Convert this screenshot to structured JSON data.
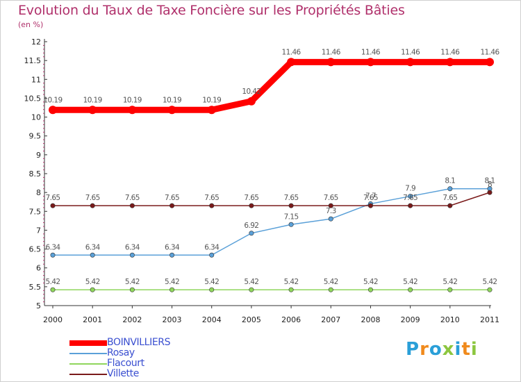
{
  "title": "Evolution du Taux de Taxe Foncière sur les Propriétés Bâties",
  "unit": "(en %)",
  "brand": {
    "letters": [
      "P",
      "r",
      "o",
      "x",
      "i",
      "t",
      "i"
    ],
    "colors": [
      "#2a9fd8",
      "#f08a1c",
      "#2a9fd8",
      "#8cc63f",
      "#2a9fd8",
      "#f08a1c",
      "#8cc63f"
    ]
  },
  "chart_data": {
    "type": "line",
    "x": [
      "2000",
      "2001",
      "2002",
      "2003",
      "2004",
      "2005",
      "2006",
      "2007",
      "2008",
      "2009",
      "2010",
      "2011"
    ],
    "yticks": [
      "5",
      "5.5",
      "6",
      "6.5",
      "7",
      "7.5",
      "8",
      "8.5",
      "9",
      "9.5",
      "10",
      "10.5",
      "11",
      "11.5",
      "12"
    ],
    "ylim": [
      5,
      12
    ],
    "grid": false,
    "legend_position": "bottom-left",
    "series": [
      {
        "name": "BOINVILLIERS",
        "color": "#ff0000",
        "values": [
          10.19,
          10.19,
          10.19,
          10.19,
          10.19,
          10.42,
          11.46,
          11.46,
          11.46,
          11.46,
          11.46,
          11.46
        ],
        "labels": [
          "10.19",
          "10.19",
          "10.19",
          "10.19",
          "10.19",
          "10.42",
          "11.46",
          "11.46",
          "11.46",
          "11.46",
          "11.46",
          "11.46"
        ]
      },
      {
        "name": "Rosay",
        "color": "#5aa0d8",
        "values": [
          6.34,
          6.34,
          6.34,
          6.34,
          6.34,
          6.92,
          7.15,
          7.3,
          7.7,
          7.9,
          8.1,
          8.1
        ],
        "labels": [
          "6.34",
          "6.34",
          "6.34",
          "6.34",
          "6.34",
          "6.92",
          "7.15",
          "7.3",
          "7.7",
          "7.9",
          "8.1",
          "8.1"
        ]
      },
      {
        "name": "Flacourt",
        "color": "#8fd65c",
        "values": [
          5.42,
          5.42,
          5.42,
          5.42,
          5.42,
          5.42,
          5.42,
          5.42,
          5.42,
          5.42,
          5.42,
          5.42
        ],
        "labels": [
          "5.42",
          "5.42",
          "5.42",
          "5.42",
          "5.42",
          "5.42",
          "5.42",
          "5.42",
          "5.42",
          "5.42",
          "5.42",
          "5.42"
        ]
      },
      {
        "name": "Villette",
        "color": "#7a1a1a",
        "values": [
          7.65,
          7.65,
          7.65,
          7.65,
          7.65,
          7.65,
          7.65,
          7.65,
          7.65,
          7.65,
          7.65,
          8
        ],
        "labels": [
          "7.65",
          "7.65",
          "7.65",
          "7.65",
          "7.65",
          "7.65",
          "7.65",
          "7.65",
          "7.65",
          "7.65",
          "7.65",
          "8"
        ]
      }
    ]
  }
}
